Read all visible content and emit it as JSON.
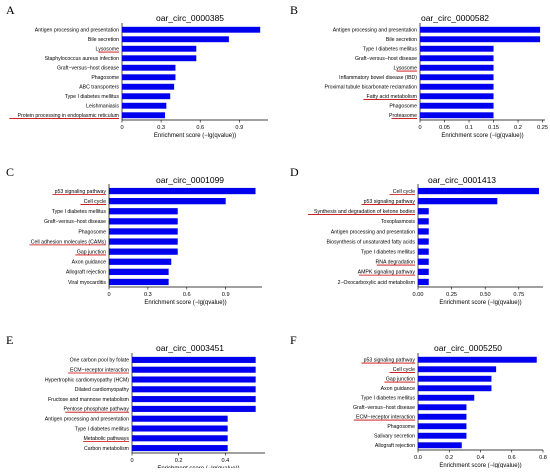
{
  "bar_color": "#0000ee",
  "highlight_color": "#cc0000",
  "chart_data": [
    {
      "type": "bar",
      "orientation": "horizontal",
      "panel_label": "A",
      "title": "oar_circ_0000385",
      "xlabel": "Enrichment score (−lg(qvalue))",
      "xlim": [
        0,
        1.12
      ],
      "xticks": [
        "0",
        "0.3",
        "0.6",
        "0.9"
      ],
      "xtick_values": [
        0,
        0.3,
        0.6,
        0.9
      ],
      "categories": [
        "Antigen processing and presentation",
        "Bile secretion",
        "Lysosome",
        "Staphylococcus aureus infection",
        "Graft−versus−host disease",
        "Phagosome",
        "ABC transporters",
        "Type I diabetes mellitus",
        "Leishmaniasis",
        "Protein processing in endoplasmic reticulum"
      ],
      "values": [
        1.06,
        0.82,
        0.57,
        0.57,
        0.41,
        0.41,
        0.4,
        0.37,
        0.34,
        0.33
      ],
      "highlighted": [
        2,
        9
      ]
    },
    {
      "type": "bar",
      "orientation": "horizontal",
      "panel_label": "B",
      "title": "oar_circ_0000582",
      "xlabel": "Enrichment score (−lg(qvalue))",
      "xlim": [
        0,
        0.255
      ],
      "xticks": [
        "0",
        "0.05",
        "0.1",
        "0.15",
        "0.2",
        "0.25"
      ],
      "xtick_values": [
        0,
        0.05,
        0.1,
        0.15,
        0.2,
        0.25
      ],
      "categories": [
        "Antigen processing and presentation",
        "Bile secretion",
        "Type I diabetes mellitus",
        "Graft−versus−host disease",
        "Lysosome",
        "Inflammatory bowel disease (IBD)",
        "Proximal tubule bicarbonate reclamation",
        "Fatty acid metabolism",
        "Phagosome",
        "Proteasome"
      ],
      "values": [
        0.245,
        0.245,
        0.15,
        0.15,
        0.15,
        0.15,
        0.15,
        0.15,
        0.15,
        0.15
      ],
      "highlighted": [
        4,
        7,
        9
      ]
    },
    {
      "type": "bar",
      "orientation": "horizontal",
      "panel_label": "C",
      "title": "oar_circ_0001099",
      "xlabel": "Enrichment score (−lg(qvalue))",
      "xlim": [
        0,
        1.18
      ],
      "xticks": [
        "0",
        "0.3",
        "0.6",
        "0.9"
      ],
      "xtick_values": [
        0,
        0.3,
        0.6,
        0.9
      ],
      "categories": [
        "p53 signaling pathway",
        "Cell cycle",
        "Type I diabetes mellitus",
        "Graft−versus−host disease",
        "Phagosome",
        "Cell adhesion molecules (CAMs)",
        "Gap junction",
        "Axon guidance",
        "Allograft rejection",
        "Viral myocarditis"
      ],
      "values": [
        1.13,
        0.9,
        0.53,
        0.53,
        0.53,
        0.53,
        0.53,
        0.48,
        0.46,
        0.46
      ],
      "highlighted": [
        0,
        1,
        5,
        6
      ]
    },
    {
      "type": "bar",
      "orientation": "horizontal",
      "panel_label": "D",
      "title": "oar_circ_0001413",
      "xlabel": "Enrichment score (−lg(qvalue))",
      "xlim": [
        0,
        0.93
      ],
      "xticks": [
        "0.00",
        "0.25",
        "0.50",
        "0.75"
      ],
      "xtick_values": [
        0,
        0.25,
        0.5,
        0.75
      ],
      "categories": [
        "Cell cycle",
        "p53 signaling pathway",
        "Synthesis and degradation of ketone bodies",
        "Toxoplasmosis",
        "Antigen processing and presentation",
        "Biosynthesis of unsaturated fatty acids",
        "Type I diabetes mellitus",
        "RNA degradation",
        "AMPK signaling pathway",
        "2−Oxocarboxylic acid metabolism"
      ],
      "values": [
        0.9,
        0.59,
        0.08,
        0.08,
        0.08,
        0.08,
        0.08,
        0.08,
        0.08,
        0.08
      ],
      "highlighted": [
        0,
        1,
        2,
        7,
        8
      ]
    },
    {
      "type": "bar",
      "orientation": "horizontal",
      "panel_label": "E",
      "title": "oar_circ_0003451",
      "xlabel": "Enrichment score (−lg(qvalue))",
      "xlim": [
        0,
        0.57
      ],
      "xticks": [
        "0",
        "0.2",
        "0.4"
      ],
      "xtick_values": [
        0,
        0.2,
        0.4
      ],
      "categories": [
        "One carbon pool by folate",
        "ECM−receptor interaction",
        "Hypertrophic cardiomyopathy (HCM)",
        "Dilated cardiomyopathy",
        "Fructose and mannose metabolism",
        "Pentose phosphate pathway",
        "Antigen processing and presentation",
        "Type I diabetes mellitus",
        "Metabolic pathways",
        "Carbon metabolism"
      ],
      "values": [
        0.53,
        0.53,
        0.53,
        0.53,
        0.53,
        0.53,
        0.41,
        0.41,
        0.41,
        0.41
      ],
      "highlighted": [
        1,
        5,
        8
      ]
    },
    {
      "type": "bar",
      "orientation": "horizontal",
      "panel_label": "F",
      "title": "oar_circ_0005250",
      "xlabel": "Enrichment score (−lg(qvalue))",
      "xlim": [
        0,
        0.8
      ],
      "xticks": [
        "0.0",
        "0.2",
        "0.4",
        "0.6",
        "0.8"
      ],
      "xtick_values": [
        0,
        0.2,
        0.4,
        0.6,
        0.8
      ],
      "categories": [
        "p53 signaling pathway",
        "Cell cycle",
        "Gap junction",
        "Axon guidance",
        "Type I diabetes mellitus",
        "Graft−versus−host disease",
        "ECM−receptor interaction",
        "Phagosome",
        "Salivary secretion",
        "Allograft rejection"
      ],
      "values": [
        0.76,
        0.5,
        0.47,
        0.47,
        0.36,
        0.31,
        0.31,
        0.31,
        0.31,
        0.28
      ],
      "highlighted": [
        0,
        1,
        2,
        6
      ]
    }
  ]
}
